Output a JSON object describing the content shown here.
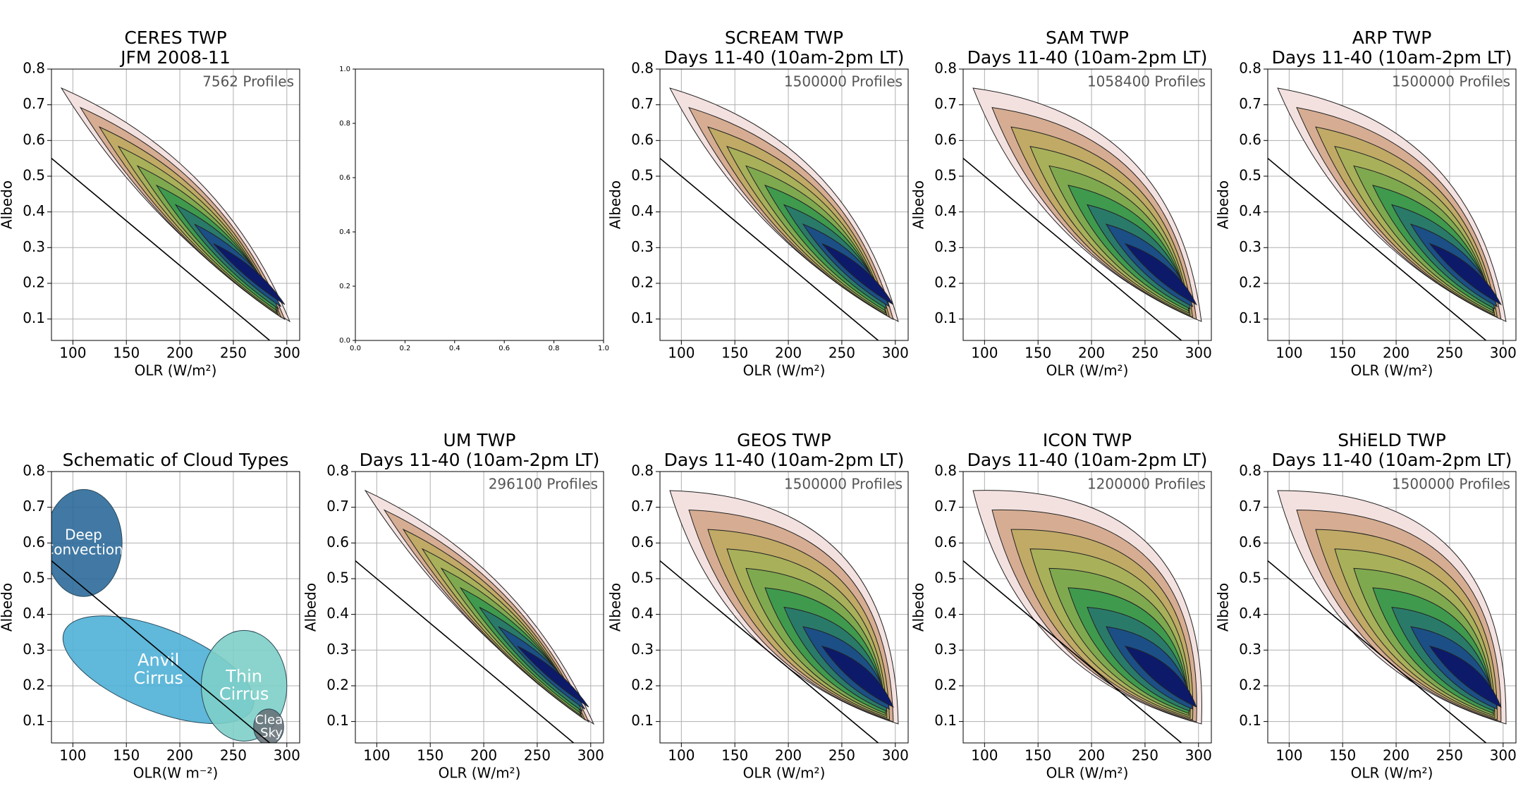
{
  "chart_data": [
    {
      "type": "contour",
      "title": "CERES TWP",
      "subtitle": "JFM 2008-11",
      "annotation": "7562 Profiles",
      "xlabel": "OLR (W/m²)",
      "ylabel": "Albedo",
      "xlim": [
        80,
        312
      ],
      "ylim": [
        0.04,
        0.8
      ],
      "xticks": [
        100,
        150,
        200,
        250,
        300
      ],
      "yticks": [
        0.1,
        0.2,
        0.3,
        0.4,
        0.5,
        0.6,
        0.7,
        0.8
      ],
      "grid": true,
      "fit_line": {
        "x": [
          80,
          290
        ],
        "y": [
          0.55,
          0.025
        ]
      }
    },
    {
      "type": "empty",
      "xlim": [
        0,
        1
      ],
      "ylim": [
        0,
        1
      ],
      "xticks": [
        {
          "value": 0,
          "label": "0.0"
        },
        {
          "value": 0.2,
          "label": "0.2"
        },
        {
          "value": 0.4,
          "label": "0.4"
        },
        {
          "value": 0.6,
          "label": "0.6"
        },
        {
          "value": 0.8,
          "label": "0.8"
        },
        {
          "value": 1,
          "label": "1.0"
        }
      ],
      "yticks": [
        {
          "value": 0,
          "label": "0.0"
        },
        {
          "value": 0.2,
          "label": "0.2"
        },
        {
          "value": 0.4,
          "label": "0.4"
        },
        {
          "value": 0.6,
          "label": "0.6"
        },
        {
          "value": 0.8,
          "label": "0.8"
        },
        {
          "value": 1,
          "label": "1.0"
        }
      ],
      "grid": false
    },
    {
      "type": "contour",
      "title": "SCREAM TWP",
      "subtitle": "Days 11-40 (10am-2pm LT)",
      "annotation": "1500000 Profiles",
      "xlabel": "OLR (W/m²)",
      "ylabel": "Albedo",
      "xlim": [
        80,
        312
      ],
      "ylim": [
        0.04,
        0.8
      ],
      "xticks": [
        100,
        150,
        200,
        250,
        300
      ],
      "yticks": [
        0.1,
        0.2,
        0.3,
        0.4,
        0.5,
        0.6,
        0.7,
        0.8
      ],
      "grid": true,
      "fit_line": {
        "x": [
          80,
          290
        ],
        "y": [
          0.55,
          0.025
        ]
      }
    },
    {
      "type": "contour",
      "title": "SAM TWP",
      "subtitle": "Days 11-40 (10am-2pm LT)",
      "annotation": "1058400 Profiles",
      "xlabel": "OLR (W/m²)",
      "ylabel": "Albedo",
      "xlim": [
        80,
        312
      ],
      "ylim": [
        0.04,
        0.8
      ],
      "xticks": [
        100,
        150,
        200,
        250,
        300
      ],
      "yticks": [
        0.1,
        0.2,
        0.3,
        0.4,
        0.5,
        0.6,
        0.7,
        0.8
      ],
      "grid": true,
      "fit_line": {
        "x": [
          80,
          290
        ],
        "y": [
          0.55,
          0.025
        ]
      }
    },
    {
      "type": "contour",
      "title": "ARP TWP",
      "subtitle": "Days 11-40 (10am-2pm LT)",
      "annotation": "1500000 Profiles",
      "xlabel": "OLR (W/m²)",
      "ylabel": "Albedo",
      "xlim": [
        80,
        312
      ],
      "ylim": [
        0.04,
        0.8
      ],
      "xticks": [
        100,
        150,
        200,
        250,
        300
      ],
      "yticks": [
        0.1,
        0.2,
        0.3,
        0.4,
        0.5,
        0.6,
        0.7,
        0.8
      ],
      "grid": true,
      "fit_line": {
        "x": [
          80,
          290
        ],
        "y": [
          0.55,
          0.025
        ]
      }
    },
    {
      "type": "schematic",
      "title": "Schematic of Cloud Types",
      "xlabel": "OLR(W m⁻²)",
      "ylabel": "Albedo",
      "xlim": [
        80,
        312
      ],
      "ylim": [
        0.04,
        0.8
      ],
      "xticks": [
        100,
        150,
        200,
        250,
        300
      ],
      "yticks": [
        0.1,
        0.2,
        0.3,
        0.4,
        0.5,
        0.6,
        0.7,
        0.8
      ],
      "grid": true,
      "fit_line": {
        "x": [
          80,
          290
        ],
        "y": [
          0.55,
          0.025
        ]
      },
      "clouds": [
        {
          "label": [
            "Deep",
            "Convection"
          ]
        },
        {
          "label": [
            "Anvil",
            "Cirrus"
          ]
        },
        {
          "label": [
            "Thin",
            "Cirrus"
          ]
        },
        {
          "label": [
            "Clear",
            "Sky"
          ]
        }
      ]
    },
    {
      "type": "contour",
      "title": "UM TWP",
      "subtitle": "Days 11-40 (10am-2pm LT)",
      "annotation": "296100 Profiles",
      "xlabel": "OLR (W/m²)",
      "ylabel": "Albedo",
      "xlim": [
        80,
        312
      ],
      "ylim": [
        0.04,
        0.8
      ],
      "xticks": [
        100,
        150,
        200,
        250,
        300
      ],
      "yticks": [
        0.1,
        0.2,
        0.3,
        0.4,
        0.5,
        0.6,
        0.7,
        0.8
      ],
      "grid": true,
      "fit_line": {
        "x": [
          80,
          290
        ],
        "y": [
          0.55,
          0.025
        ]
      }
    },
    {
      "type": "contour",
      "title": "GEOS TWP",
      "subtitle": "Days 11-40 (10am-2pm LT)",
      "annotation": "1500000 Profiles",
      "xlabel": "OLR (W/m²)",
      "ylabel": "Albedo",
      "xlim": [
        80,
        312
      ],
      "ylim": [
        0.04,
        0.8
      ],
      "xticks": [
        100,
        150,
        200,
        250,
        300
      ],
      "yticks": [
        0.1,
        0.2,
        0.3,
        0.4,
        0.5,
        0.6,
        0.7,
        0.8
      ],
      "grid": true,
      "fit_line": {
        "x": [
          80,
          290
        ],
        "y": [
          0.55,
          0.025
        ]
      }
    },
    {
      "type": "contour",
      "title": "ICON TWP",
      "subtitle": "Days 11-40 (10am-2pm LT)",
      "annotation": "1200000 Profiles",
      "xlabel": "OLR (W/m²)",
      "ylabel": "Albedo",
      "xlim": [
        80,
        312
      ],
      "ylim": [
        0.04,
        0.8
      ],
      "xticks": [
        100,
        150,
        200,
        250,
        300
      ],
      "yticks": [
        0.1,
        0.2,
        0.3,
        0.4,
        0.5,
        0.6,
        0.7,
        0.8
      ],
      "grid": true,
      "fit_line": {
        "x": [
          80,
          290
        ],
        "y": [
          0.55,
          0.025
        ]
      }
    },
    {
      "type": "contour",
      "title": "SHiELD TWP",
      "subtitle": "Days 11-40 (10am-2pm LT)",
      "annotation": "1500000 Profiles",
      "xlabel": "OLR (W/m²)",
      "ylabel": "Albedo",
      "xlim": [
        80,
        312
      ],
      "ylim": [
        0.04,
        0.8
      ],
      "xticks": [
        100,
        150,
        200,
        250,
        300
      ],
      "yticks": [
        0.1,
        0.2,
        0.3,
        0.4,
        0.5,
        0.6,
        0.7,
        0.8
      ],
      "grid": true,
      "fit_line": {
        "x": [
          80,
          290
        ],
        "y": [
          0.55,
          0.025
        ]
      }
    }
  ]
}
